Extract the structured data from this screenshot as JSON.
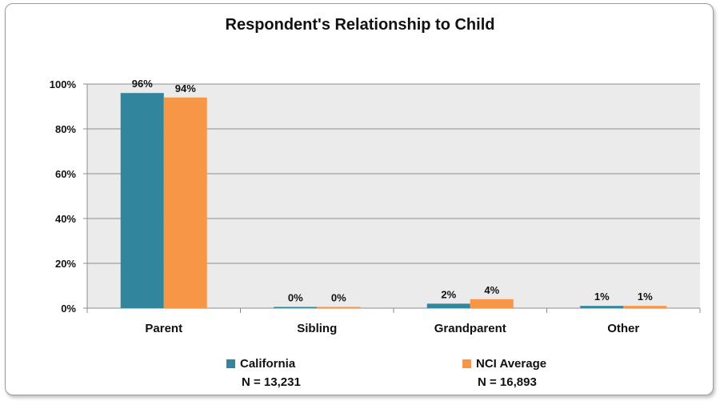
{
  "chart_data": {
    "type": "bar",
    "title": "Respondent's Relationship to Child",
    "categories": [
      "Parent",
      "Sibling",
      "Grandparent",
      "Other"
    ],
    "series": [
      {
        "name": "California",
        "values": [
          96,
          0,
          2,
          1
        ],
        "labels": [
          "96%",
          "0%",
          "2%",
          "1%"
        ],
        "color": "#31859c",
        "n_label": "N = 13,231"
      },
      {
        "name": "NCI Average",
        "values": [
          94,
          0,
          4,
          1
        ],
        "labels": [
          "94%",
          "0%",
          "4%",
          "1%"
        ],
        "color": "#f79646",
        "n_label": "N = 16,893"
      }
    ],
    "ylim": [
      0,
      100
    ],
    "yticks": [
      0,
      20,
      40,
      60,
      80,
      100
    ],
    "ytick_labels": [
      "0%",
      "20%",
      "40%",
      "60%",
      "80%",
      "100%"
    ],
    "grid": true,
    "plot_background": "#ebebeb",
    "legend_position": "bottom"
  }
}
